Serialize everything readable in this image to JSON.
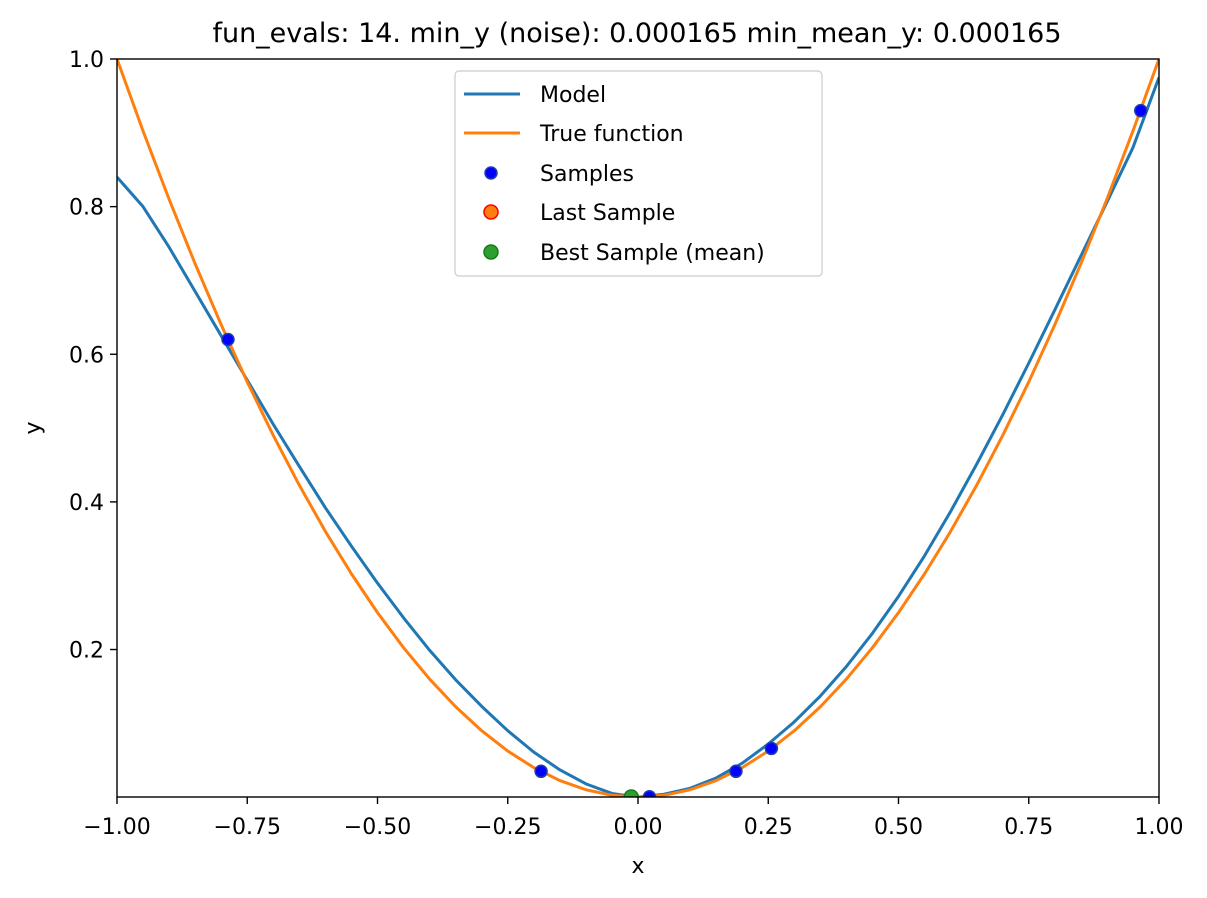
{
  "chart_data": {
    "type": "line",
    "title": "fun_evals: 14. min_y (noise): 0.000165 min_mean_y: 0.000165",
    "xlabel": "x",
    "ylabel": "y",
    "xlim": [
      -1.0,
      1.0
    ],
    "ylim": [
      0.0002,
      1.0
    ],
    "xticks": [
      -1.0,
      -0.75,
      -0.5,
      -0.25,
      0.0,
      0.25,
      0.5,
      0.75,
      1.0
    ],
    "xtick_labels": [
      "−1.00",
      "−0.75",
      "−0.50",
      "−0.25",
      "0.00",
      "0.25",
      "0.50",
      "0.75",
      "1.00"
    ],
    "yticks": [
      0.2,
      0.4,
      0.6,
      0.8,
      1.0
    ],
    "ytick_labels": [
      "0.2",
      "0.4",
      "0.6",
      "0.8",
      "1.0"
    ],
    "grid": false,
    "legend_position": "top-center",
    "series": [
      {
        "name": "Model",
        "kind": "line",
        "color": "#1f77b4",
        "x": [
          -1.0,
          -0.95,
          -0.9,
          -0.85,
          -0.8,
          -0.75,
          -0.7,
          -0.65,
          -0.6,
          -0.55,
          -0.5,
          -0.45,
          -0.4,
          -0.35,
          -0.3,
          -0.25,
          -0.2,
          -0.15,
          -0.1,
          -0.05,
          0.0,
          0.05,
          0.1,
          0.15,
          0.2,
          0.25,
          0.3,
          0.35,
          0.4,
          0.45,
          0.5,
          0.55,
          0.6,
          0.65,
          0.7,
          0.75,
          0.8,
          0.85,
          0.9,
          0.95,
          1.0
        ],
        "y": [
          0.84,
          0.8,
          0.745,
          0.685,
          0.625,
          0.565,
          0.505,
          0.448,
          0.392,
          0.34,
          0.29,
          0.243,
          0.199,
          0.159,
          0.123,
          0.09,
          0.061,
          0.037,
          0.018,
          0.005,
          0.0,
          0.004,
          0.012,
          0.026,
          0.046,
          0.072,
          0.102,
          0.137,
          0.177,
          0.222,
          0.272,
          0.327,
          0.387,
          0.451,
          0.518,
          0.588,
          0.66,
          0.733,
          0.806,
          0.88,
          0.975
        ]
      },
      {
        "name": "True function",
        "kind": "line",
        "color": "#ff7f0e",
        "x": [
          -1.0,
          -0.95,
          -0.9,
          -0.85,
          -0.8,
          -0.75,
          -0.7,
          -0.65,
          -0.6,
          -0.55,
          -0.5,
          -0.45,
          -0.4,
          -0.35,
          -0.3,
          -0.25,
          -0.2,
          -0.15,
          -0.1,
          -0.05,
          0.0,
          0.05,
          0.1,
          0.15,
          0.2,
          0.25,
          0.3,
          0.35,
          0.4,
          0.45,
          0.5,
          0.55,
          0.6,
          0.65,
          0.7,
          0.75,
          0.8,
          0.85,
          0.9,
          0.95,
          1.0
        ],
        "y": [
          1.0,
          0.9025,
          0.81,
          0.7225,
          0.64,
          0.5625,
          0.49,
          0.4225,
          0.36,
          0.3025,
          0.25,
          0.2025,
          0.16,
          0.1225,
          0.09,
          0.0625,
          0.04,
          0.0225,
          0.01,
          0.0025,
          0.0,
          0.0025,
          0.01,
          0.0225,
          0.04,
          0.0625,
          0.09,
          0.1225,
          0.16,
          0.2025,
          0.25,
          0.3025,
          0.36,
          0.4225,
          0.49,
          0.5625,
          0.64,
          0.7225,
          0.81,
          0.9025,
          1.0
        ]
      },
      {
        "name": "Samples",
        "kind": "scatter",
        "color": "#0000ff",
        "edge": "#1f3fa8",
        "x": [
          -0.787,
          -0.186,
          0.022,
          0.188,
          0.256,
          0.965
        ],
        "y": [
          0.62,
          0.035,
          0.0005,
          0.035,
          0.066,
          0.93
        ]
      },
      {
        "name": "Last Sample",
        "kind": "scatter",
        "color": "#ff7f0e",
        "edge": "#ff0000",
        "x": [],
        "y": []
      },
      {
        "name": "Best Sample (mean)",
        "kind": "scatter",
        "color": "#2ca02c",
        "edge": "#1a7a1a",
        "x": [
          -0.013
        ],
        "y": [
          0.000165
        ]
      }
    ]
  }
}
